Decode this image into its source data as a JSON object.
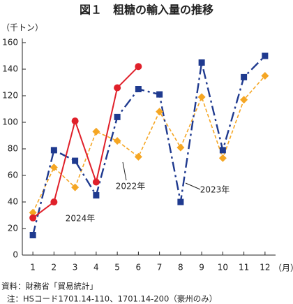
{
  "chart_data": {
    "type": "line",
    "title": "図１　粗糖の輸入量の推移",
    "y_label": "（千トン）",
    "x_label": "（月）",
    "x": [
      1,
      2,
      3,
      4,
      5,
      6,
      7,
      8,
      9,
      10,
      11,
      12
    ],
    "xlim": [
      0.5,
      12.5
    ],
    "xticks": [
      1,
      2,
      3,
      4,
      5,
      6,
      7,
      8,
      9,
      10,
      11,
      12
    ],
    "ylim": [
      0,
      160
    ],
    "yticks": [
      0,
      20,
      40,
      60,
      80,
      100,
      120,
      140,
      160
    ],
    "grid": false,
    "series": [
      {
        "name": "2022年",
        "color": "#f5a623",
        "values": [
          32,
          66,
          51,
          93,
          86,
          74,
          108,
          81,
          119,
          73,
          117,
          135
        ]
      },
      {
        "name": "2023年",
        "color": "#1f3a8f",
        "values": [
          15,
          79,
          71,
          45,
          104,
          125,
          121,
          40,
          145,
          79,
          134,
          150
        ]
      },
      {
        "name": "2024年",
        "color": "#e0202a",
        "values": [
          28,
          40,
          101,
          55,
          126,
          142,
          null,
          null,
          null,
          null,
          null,
          null
        ]
      }
    ],
    "notes": [
      "資料：財務省「貿易統計」",
      "注：HSコード1701.14-110、1701.14-200（豪州のみ）"
    ]
  }
}
